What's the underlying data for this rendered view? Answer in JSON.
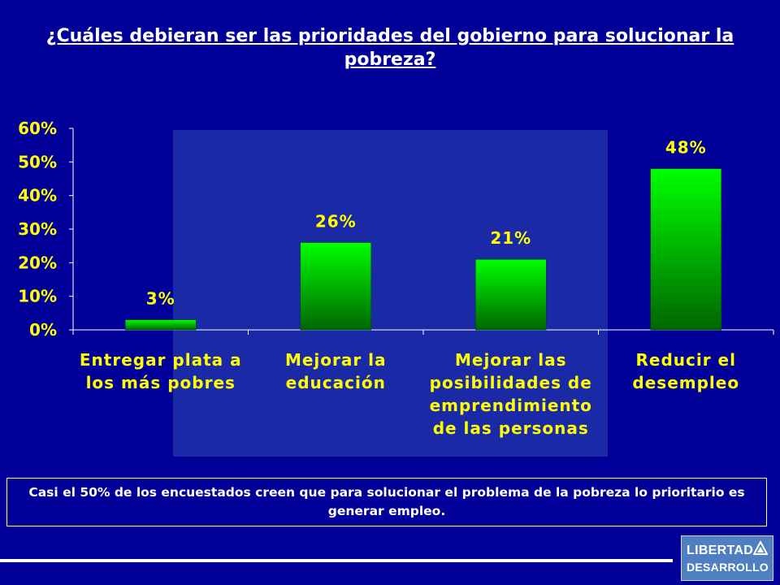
{
  "title": "¿Cuáles debieran ser las prioridades del gobierno para solucionar la pobreza?",
  "chart_data": {
    "type": "bar",
    "categories": [
      [
        "Entregar plata a",
        "los más pobres"
      ],
      [
        "Mejorar la",
        "educación"
      ],
      [
        "Mejorar las",
        "posibilidades de",
        "emprendimiento",
        "de las personas"
      ],
      [
        "Reducir el",
        "desempleo"
      ]
    ],
    "values": [
      3,
      26,
      21,
      48
    ],
    "data_labels": [
      "3%",
      "26%",
      "21%",
      "48%"
    ],
    "ylim": [
      0,
      60
    ],
    "yticks": [
      0,
      10,
      20,
      30,
      40,
      50,
      60
    ],
    "ytick_labels": [
      "0%",
      "10%",
      "20%",
      "30%",
      "40%",
      "50%",
      "60%"
    ],
    "bar_color_top": "#00ff00",
    "bar_color_bottom": "#006600",
    "text_color": "#ffff00",
    "grid": false
  },
  "note": "Casi el 50% de los encuestados creen que para solucionar el problema de la pobreza lo prioritario es generar empleo.",
  "logo": {
    "line1": "LIBERTAD",
    "line2": "DESARROLLO"
  },
  "colors": {
    "background": "#000099",
    "panel": "#1a2aa6"
  }
}
